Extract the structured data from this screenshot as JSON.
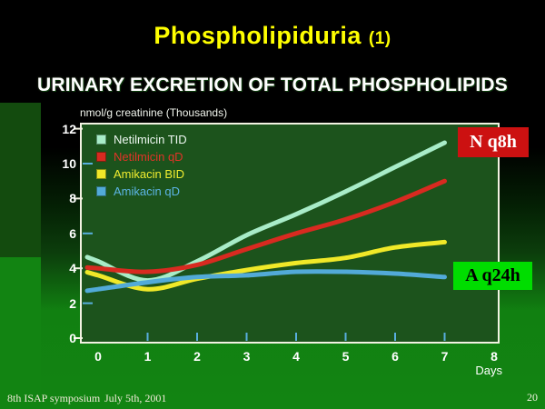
{
  "slide": {
    "title": "Phospholipiduria",
    "title_suffix": "(1)",
    "subtitle": "URINARY EXCRETION OF TOTAL PHOSPHOLIPIDS",
    "footer_symposium": "8th ISAP symposium",
    "footer_date": "July 5th, 2001",
    "page_number": "20"
  },
  "colors": {
    "title": "#ffff00",
    "subtitle": "#ffffff",
    "background_top": "#000000",
    "background_bottom": "#128412",
    "panel_background": "#1c531c",
    "frame": "#f2f2e2",
    "axis_text": "#ffffff",
    "minor_tick": "#58aede"
  },
  "chart_data": {
    "type": "line",
    "title": "URINARY EXCRETION OF TOTAL PHOSPHOLIPIDS",
    "ylabel": "nmol/g creatinine (Thousands)",
    "xlabel": "Days",
    "xlim": [
      0,
      8
    ],
    "ylim": [
      0,
      12
    ],
    "xticks": [
      0,
      1,
      2,
      3,
      4,
      5,
      6,
      7,
      8
    ],
    "yticks": [
      0,
      2,
      4,
      6,
      8,
      10,
      12
    ],
    "grid": false,
    "legend_position": "top-left-inside",
    "x": [
      0,
      1,
      2,
      3,
      4,
      5,
      6,
      7
    ],
    "series": [
      {
        "name": "Netilmicin TID",
        "color": "#a8ecc8",
        "label_color": "#eef8f2",
        "values": [
          4.4,
          3.3,
          4.4,
          5.9,
          7.1,
          8.4,
          9.8,
          11.2
        ]
      },
      {
        "name": "Netilmicin qD",
        "color": "#d82a20",
        "label_color": "#e03428",
        "values": [
          4.0,
          3.8,
          4.2,
          5.1,
          6.0,
          6.8,
          7.8,
          9.0
        ]
      },
      {
        "name": "Amikacin BID",
        "color": "#f0e828",
        "label_color": "#f2ee30",
        "values": [
          3.6,
          2.8,
          3.4,
          3.9,
          4.3,
          4.6,
          5.2,
          5.5
        ]
      },
      {
        "name": "Amikacin qD",
        "color": "#52aad8",
        "label_color": "#5cb4e4",
        "values": [
          2.8,
          3.2,
          3.5,
          3.6,
          3.8,
          3.8,
          3.7,
          3.5
        ]
      }
    ],
    "annotations": [
      {
        "text": "N q8h",
        "bg": "#cc1111",
        "fg": "#ffffff"
      },
      {
        "text": "A q24h",
        "bg": "#00dd00",
        "fg": "#000000"
      }
    ]
  }
}
